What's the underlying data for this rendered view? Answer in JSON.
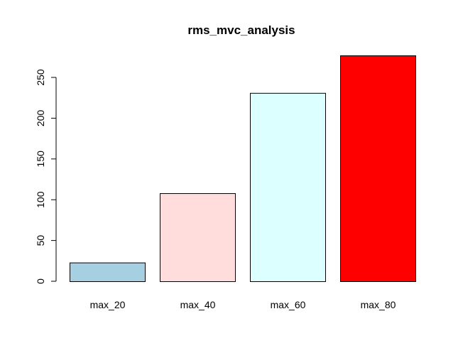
{
  "chart_data": {
    "type": "bar",
    "title": "rms_mvc_analysis",
    "xlabel": "",
    "ylabel": "",
    "categories": [
      "max_20",
      "max_40",
      "max_60",
      "max_80"
    ],
    "values": [
      23,
      108,
      231,
      277
    ],
    "colors": [
      "#a6d0e2",
      "#ffdddd",
      "#dcffff",
      "#ff0000"
    ],
    "bar_border_color": "#000000",
    "yticks": [
      0,
      50,
      100,
      150,
      200,
      250
    ],
    "ylim": [
      0,
      277
    ],
    "grid": false,
    "legend": "none"
  }
}
